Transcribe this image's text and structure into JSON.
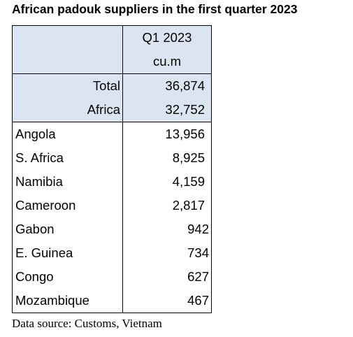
{
  "chart_data": {
    "type": "table",
    "title": "African padouk suppliers in the first quarter 2023",
    "column_header": "Q1 2023",
    "unit": "cu.m",
    "summary_rows": [
      {
        "label": "Total",
        "value": "36,874"
      },
      {
        "label": "Africa",
        "value": "32,752"
      }
    ],
    "rows": [
      {
        "label": "Angola",
        "value": "13,956"
      },
      {
        "label": "S. Africa",
        "value": "8,925"
      },
      {
        "label": "Namibia",
        "value": "4,159"
      },
      {
        "label": "Cameroon",
        "value": "2,817"
      },
      {
        "label": "Gabon",
        "value": "942"
      },
      {
        "label": "E. Guinea",
        "value": "734"
      },
      {
        "label": "Congo",
        "value": "627"
      },
      {
        "label": "Mozambique",
        "value": "467"
      }
    ],
    "source": "Data source: Customs, Vietnam"
  },
  "colors": {
    "header_fill": "#dbe5f1",
    "border": "#000000",
    "text": "#000000"
  }
}
